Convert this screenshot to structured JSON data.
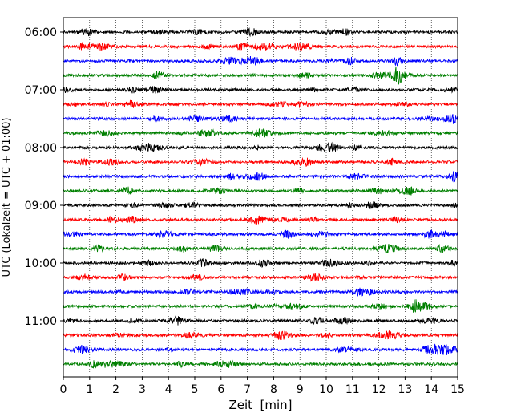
{
  "chart_data": {
    "type": "line",
    "title": "",
    "xlabel": "Zeit  [min]",
    "ylabel": "UTC (Lokalzeit = UTC + 01:00)",
    "xlim": [
      0,
      15
    ],
    "x_ticks": [
      0,
      1,
      2,
      3,
      4,
      5,
      6,
      7,
      8,
      9,
      10,
      11,
      12,
      13,
      14,
      15
    ],
    "x_tick_labels": [
      "0",
      "1",
      "2",
      "3",
      "4",
      "5",
      "6",
      "7",
      "8",
      "9",
      "10",
      "11",
      "12",
      "13",
      "14",
      "15"
    ],
    "y_tick_labels": [
      "06:00",
      "07:00",
      "08:00",
      "09:00",
      "10:00",
      "11:00"
    ],
    "vertical_grid": "dotted",
    "trace_interval": "00:15",
    "trace_start": "06:00",
    "traces": [
      "06:00",
      "06:15",
      "06:30",
      "06:45",
      "07:00",
      "07:15",
      "07:30",
      "07:45",
      "08:00",
      "08:15",
      "08:30",
      "08:45",
      "09:00",
      "09:15",
      "09:30",
      "09:45",
      "10:00",
      "10:15",
      "10:30",
      "10:45",
      "11:00",
      "11:15",
      "11:30",
      "11:45"
    ],
    "trace_colors": [
      "#000000",
      "#ff0000",
      "#0000ff",
      "#008000"
    ]
  }
}
